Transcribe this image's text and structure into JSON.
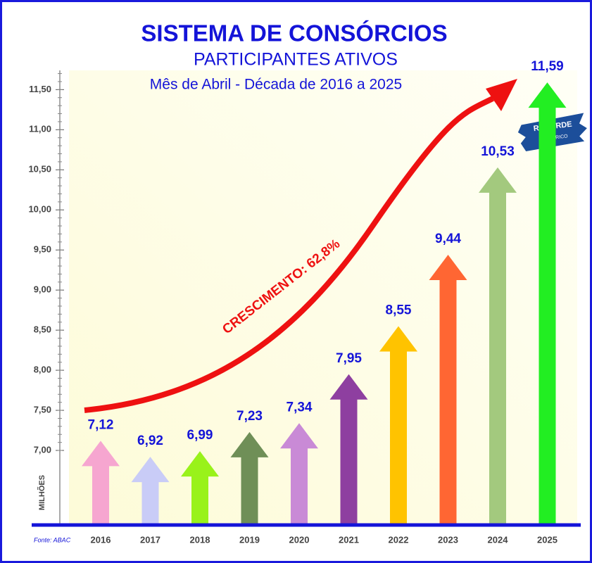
{
  "chart_data": {
    "type": "arrow_bar",
    "title": "SISTEMA DE CONSÓRCIOS",
    "subtitle": "PARTICIPANTES ATIVOS",
    "period": "Mês de Abril - Década de 2016 a 2025",
    "y_label": "MILHÕES",
    "source": "Fonte: ABAC",
    "annotation": "CRESCIMENTO: 62,8%",
    "badge": [
      "RECORDE",
      "HISTÓRICO"
    ],
    "categories": [
      "2016",
      "2017",
      "2018",
      "2019",
      "2020",
      "2021",
      "2022",
      "2023",
      "2024",
      "2025"
    ],
    "values": [
      7.12,
      6.92,
      6.99,
      7.23,
      7.34,
      7.95,
      8.55,
      9.44,
      10.53,
      11.59
    ],
    "value_labels": [
      "7,12",
      "6,92",
      "6,99",
      "7,23",
      "7,34",
      "7,95",
      "8,55",
      "9,44",
      "10,53",
      "11,59"
    ],
    "colors": [
      "#f6a6d0",
      "#c9ccf7",
      "#99f21a",
      "#6f8f57",
      "#c98ad6",
      "#8e3fa0",
      "#ffc300",
      "#ff6633",
      "#a3c97e",
      "#22ee22"
    ],
    "ylim": [
      6.07,
      11.74
    ],
    "yticks": [
      {
        "value": 7,
        "label": "7,00"
      },
      {
        "value": 7.5,
        "label": "7,50"
      },
      {
        "value": 8,
        "label": "8,00"
      },
      {
        "value": 8.5,
        "label": "8,50"
      },
      {
        "value": 9,
        "label": "9,00"
      },
      {
        "value": 9.5,
        "label": "9,50"
      },
      {
        "value": 10,
        "label": "10,00"
      },
      {
        "value": 10.5,
        "label": "10,50"
      },
      {
        "value": 11,
        "label": "11,00"
      },
      {
        "value": 11.5,
        "label": "11,50"
      }
    ]
  }
}
